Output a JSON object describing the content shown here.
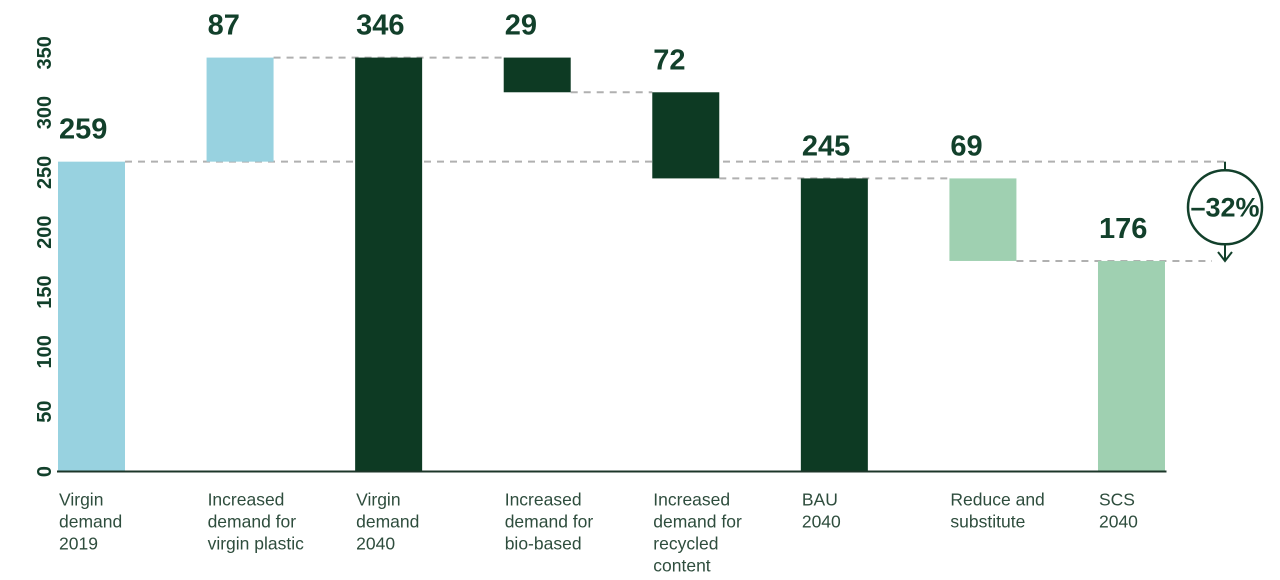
{
  "chart_data": {
    "type": "bar",
    "subtype": "waterfall",
    "title": "",
    "xlabel": "",
    "ylabel": "",
    "ylim": [
      0,
      350
    ],
    "yticks": [
      0,
      50,
      100,
      150,
      200,
      250,
      300,
      350
    ],
    "grid": false,
    "legend": "none",
    "bars": [
      {
        "name": "virgin-demand-2019",
        "label_lines": [
          "Virgin",
          "demand",
          "2019"
        ],
        "value": 259,
        "start": 0,
        "end": 259,
        "color": "light_blue"
      },
      {
        "name": "increased-demand-virgin-plastic",
        "label_lines": [
          "Increased",
          "demand for",
          "virgin plastic"
        ],
        "value": 87,
        "start": 259,
        "end": 346,
        "color": "light_blue"
      },
      {
        "name": "virgin-demand-2040",
        "label_lines": [
          "Virgin",
          "demand",
          "2040"
        ],
        "value": 346,
        "start": 0,
        "end": 346,
        "color": "dark_green"
      },
      {
        "name": "increased-demand-bio-based",
        "label_lines": [
          "Increased",
          "demand for",
          "bio-based"
        ],
        "value": 29,
        "start": 317,
        "end": 346,
        "color": "dark_green"
      },
      {
        "name": "increased-demand-recycled-content",
        "label_lines": [
          "Increased",
          "demand for",
          "recycled",
          "content"
        ],
        "value": 72,
        "start": 245,
        "end": 317,
        "color": "dark_green"
      },
      {
        "name": "bau-2040",
        "label_lines": [
          "BAU",
          "2040"
        ],
        "value": 245,
        "start": 0,
        "end": 245,
        "color": "dark_green"
      },
      {
        "name": "reduce-and-substitute",
        "label_lines": [
          "Reduce and",
          "substitute"
        ],
        "value": 69,
        "start": 176,
        "end": 245,
        "color": "light_green"
      },
      {
        "name": "scs-2040",
        "label_lines": [
          "SCS",
          "2040"
        ],
        "value": 176,
        "start": 0,
        "end": 176,
        "color": "light_green"
      }
    ],
    "connectors": [
      {
        "level": 259,
        "from": "bar:0:right",
        "to": "annotation"
      },
      {
        "level": 346,
        "from": "bar:1:right",
        "to": "bar:3:left"
      },
      {
        "level": 317,
        "from": "bar:3:right",
        "to": "bar:4:left"
      },
      {
        "level": 245,
        "from": "bar:4:right",
        "to": "bar:6:left"
      },
      {
        "level": 176,
        "from": "bar:6:right",
        "to": "annotation_arrow"
      }
    ],
    "annotation": {
      "label": "–32%",
      "from_level": 259,
      "to_level": 176
    }
  },
  "colors": {
    "light_blue": "#98d2e0",
    "dark_green": "#0d3a23",
    "light_green": "#9fd0b1",
    "value_text": "#12402b",
    "tick_text": "#12402b",
    "category_text": "#2e4d3d",
    "dash": "#b0b0b0",
    "axis_line": "#1c3629",
    "annotation_stroke": "#12402b",
    "annotation_fill": "#ffffff",
    "background": "#ffffff"
  }
}
